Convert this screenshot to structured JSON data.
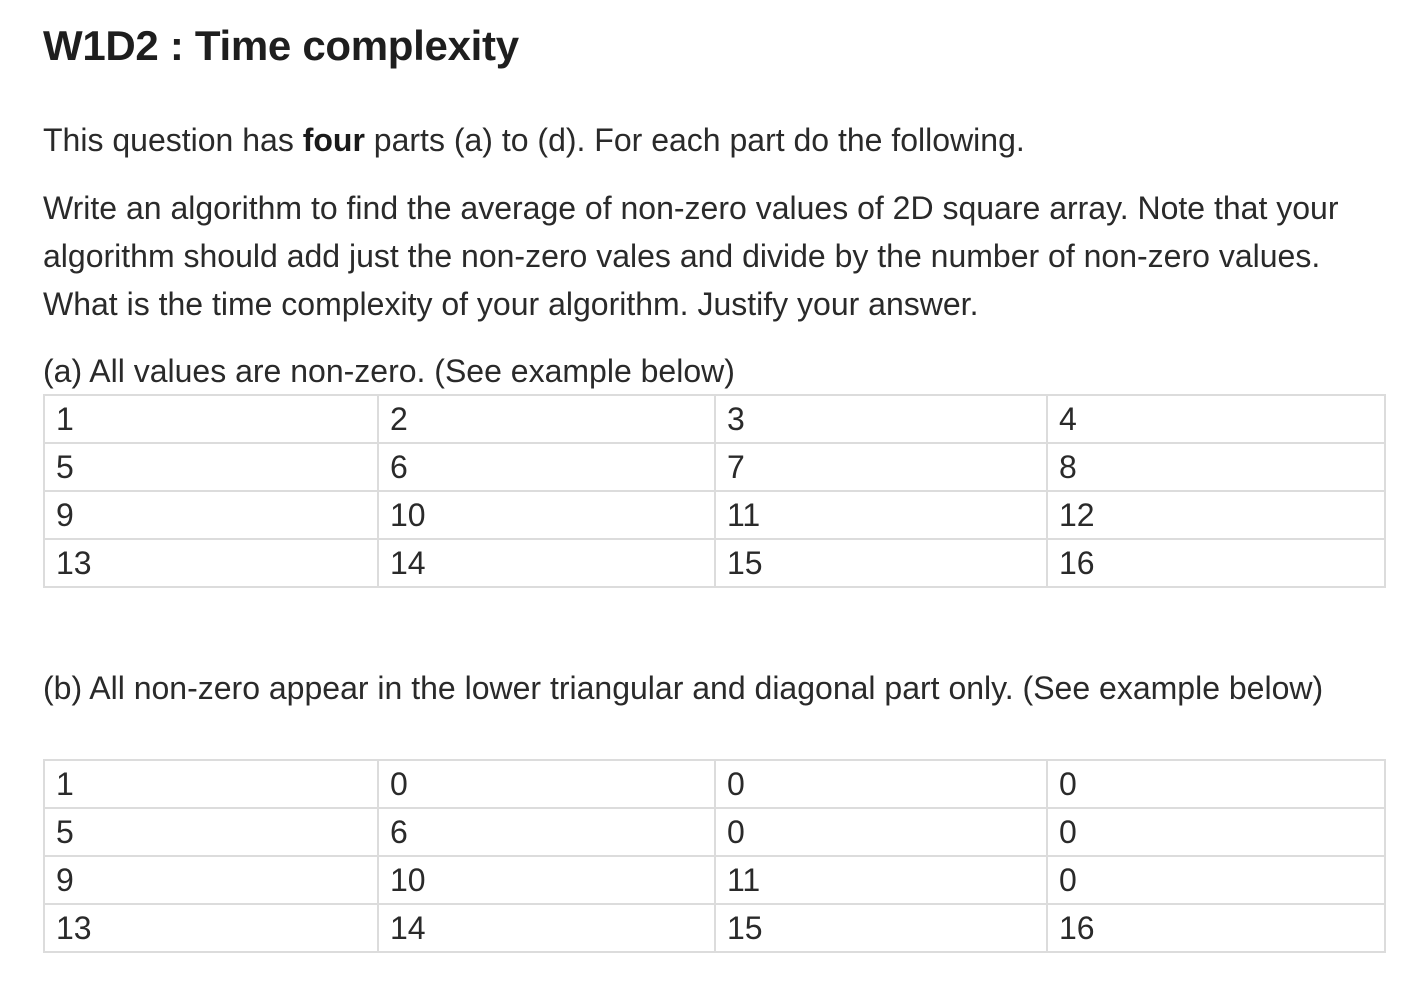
{
  "title": "W1D2 : Time complexity",
  "intro": {
    "before": "This question has ",
    "bold": "four",
    "after": " parts (a) to (d). For each part do the following."
  },
  "task": "Write an algorithm to find the  average of non-zero values of 2D square array. Note that your algorithm should add just the non-zero vales and divide by the number of non-zero values. What is the time complexity of your algorithm. Justify your answer.",
  "part_a": {
    "label": "(a) All values are non-zero.  (See example below)",
    "rows": [
      [
        "1",
        "2",
        "3",
        "4"
      ],
      [
        "5",
        "6",
        "7",
        "8"
      ],
      [
        "9",
        "10",
        "11",
        "12"
      ],
      [
        "13",
        "14",
        "15",
        "16"
      ]
    ]
  },
  "part_b": {
    "label": "(b) All non-zero appear in the lower triangular and diagonal part only. (See example below)",
    "rows": [
      [
        "1",
        "0",
        "0",
        "0"
      ],
      [
        "5",
        "6",
        "0",
        "0"
      ],
      [
        "9",
        "10",
        "11",
        "0"
      ],
      [
        "13",
        "14",
        "15",
        "16"
      ]
    ]
  }
}
